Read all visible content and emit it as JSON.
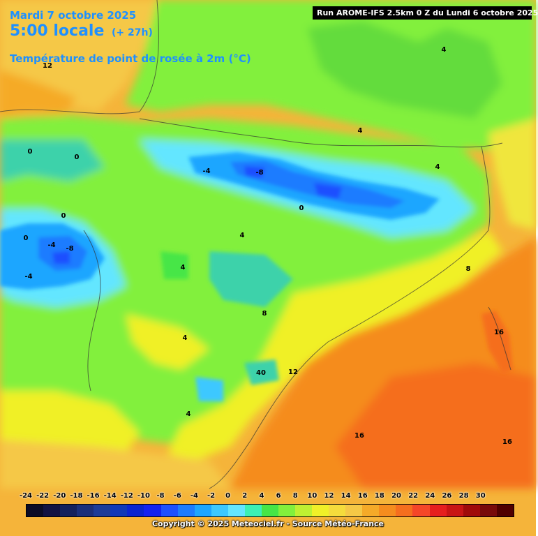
{
  "header": {
    "date": "Mardi 7 octobre 2025",
    "time": "5:00 locale",
    "lead": "(+ 27h)",
    "parameter": "Température de point de rosée à 2m (°C)",
    "run": "Run AROME-IFS 2.5km 0 Z du Lundi 6 octobre 2025"
  },
  "map": {
    "contour_labels": [
      {
        "text": "12"
      },
      {
        "text": "4"
      },
      {
        "text": "4"
      },
      {
        "text": "0"
      },
      {
        "text": "0"
      },
      {
        "text": "-4"
      },
      {
        "text": "-8"
      },
      {
        "text": "4"
      },
      {
        "text": "0"
      },
      {
        "text": "4"
      },
      {
        "text": "0"
      },
      {
        "text": "0"
      },
      {
        "text": "-4"
      },
      {
        "text": "-8"
      },
      {
        "text": "-4"
      },
      {
        "text": "4"
      },
      {
        "text": "8"
      },
      {
        "text": "8"
      },
      {
        "text": "4"
      },
      {
        "text": "16"
      },
      {
        "text": "12"
      },
      {
        "text": "40"
      },
      {
        "text": "4"
      },
      {
        "text": "16"
      },
      {
        "text": "16"
      }
    ]
  },
  "legend": {
    "ticks": [
      "-24",
      "-22",
      "-20",
      "-18",
      "-16",
      "-14",
      "-12",
      "-10",
      "-8",
      "-6",
      "-4",
      "-2",
      "0",
      "2",
      "4",
      "6",
      "8",
      "10",
      "12",
      "14",
      "16",
      "18",
      "20",
      "22",
      "24",
      "26",
      "28",
      "30"
    ],
    "colors": [
      "#0b0b26",
      "#121242",
      "#14215c",
      "#1a2f7a",
      "#1c3c98",
      "#1038b8",
      "#0a24d0",
      "#1422f0",
      "#1e50ff",
      "#1e7cff",
      "#1ea6ff",
      "#3cc8ff",
      "#64e6ff",
      "#3cf0b4",
      "#46e646",
      "#82f03c",
      "#bef032",
      "#f0f028",
      "#f5dc3c",
      "#f5c846",
      "#f5aa28",
      "#f58c1e",
      "#f56e1e",
      "#f54628",
      "#e61e1e",
      "#c81414",
      "#a00a0a",
      "#780a0a",
      "#500000"
    ]
  },
  "footer": {
    "copyright": "Copyright © 2025 Meteociel.fr - Source Météo-France"
  },
  "colors": {
    "title": "#1e90ff",
    "sea_warm": "#f58c1e",
    "land_green": "#82f03c",
    "land_yellow": "#f0f028"
  }
}
